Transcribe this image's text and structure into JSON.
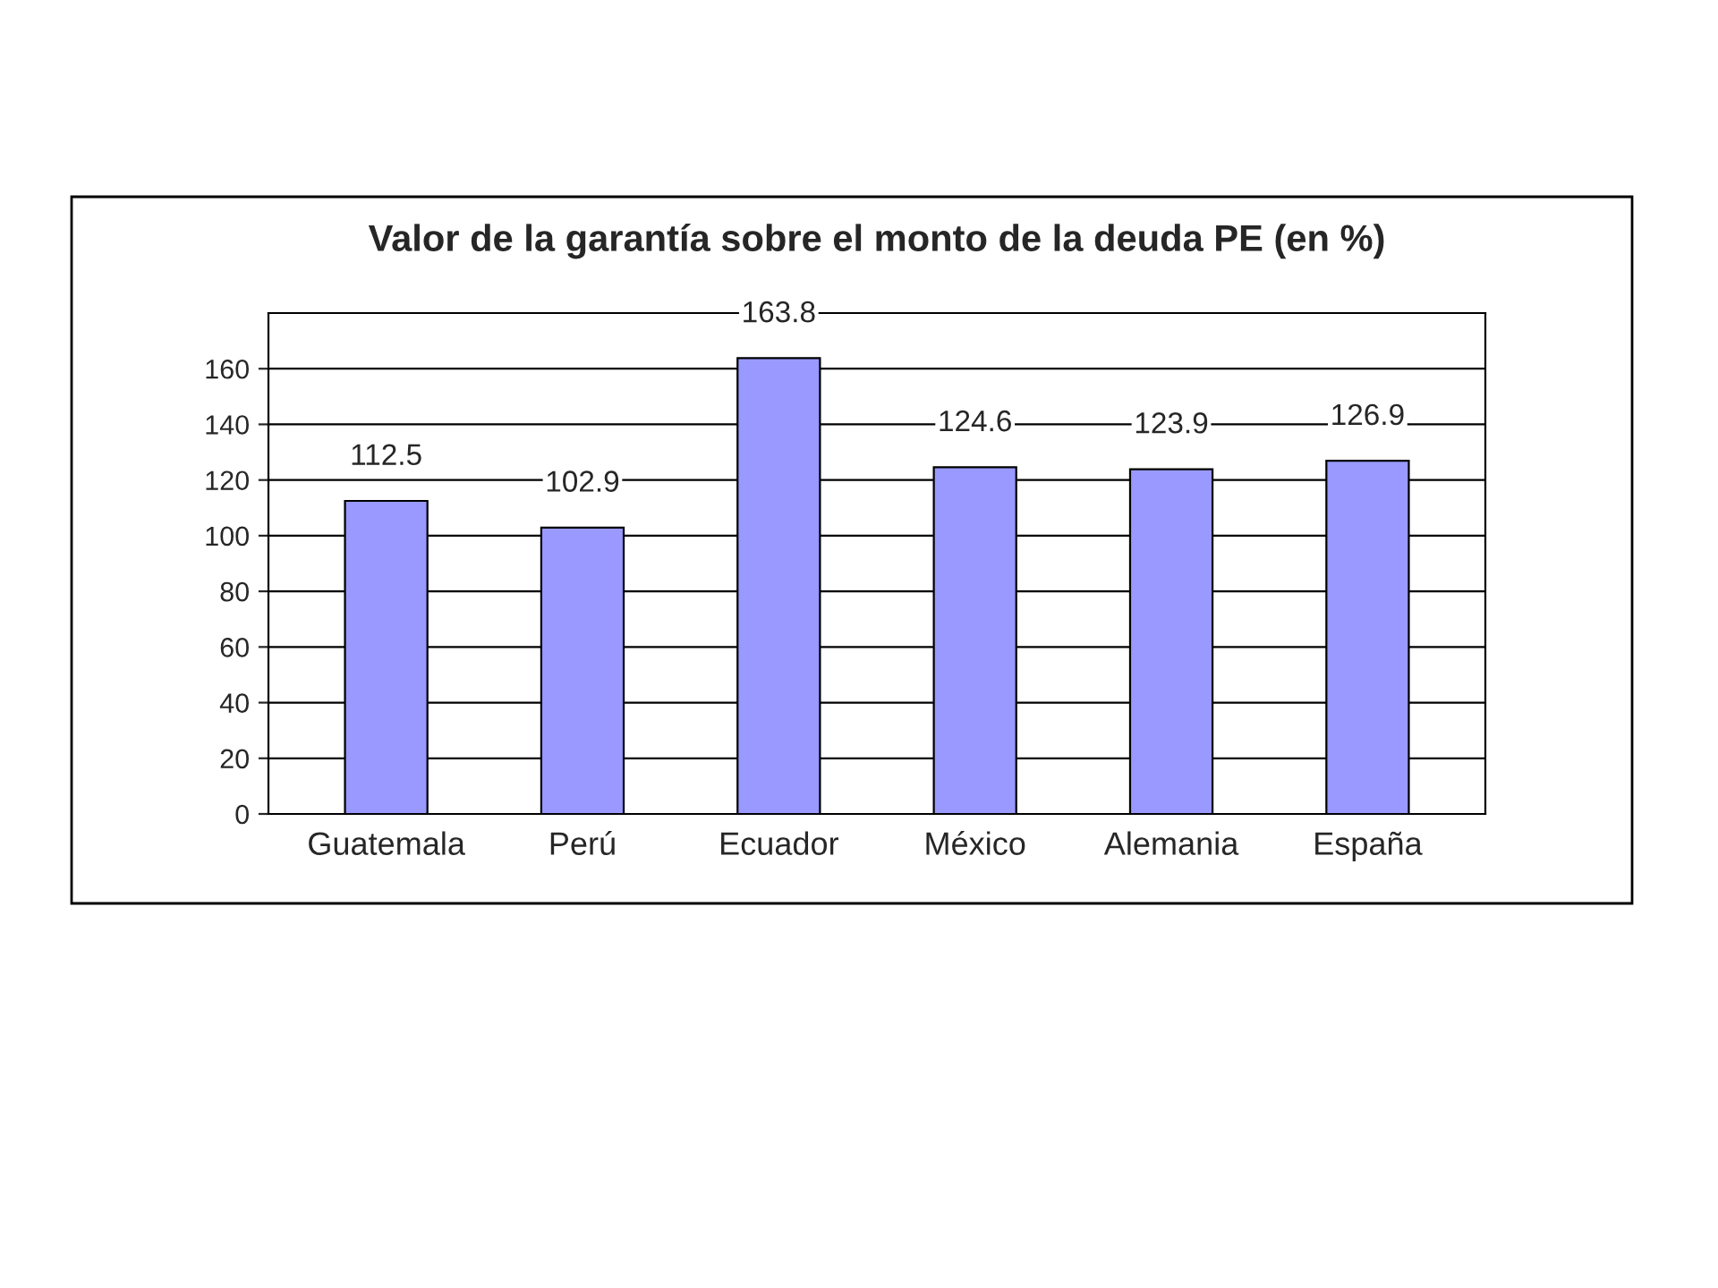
{
  "chart_data": {
    "type": "bar",
    "title": "Valor de la garantía sobre el monto de la deuda PE (en %)",
    "categories": [
      "Guatemala",
      "Perú",
      "Ecuador",
      "México",
      "Alemania",
      "España"
    ],
    "values": [
      112.5,
      102.9,
      163.8,
      124.6,
      123.9,
      126.9
    ],
    "color": "#9999ff",
    "ylim": [
      0,
      180
    ],
    "yticks": [
      0,
      20,
      40,
      60,
      80,
      100,
      120,
      140,
      160
    ],
    "grid": "y",
    "data_labels": true
  }
}
